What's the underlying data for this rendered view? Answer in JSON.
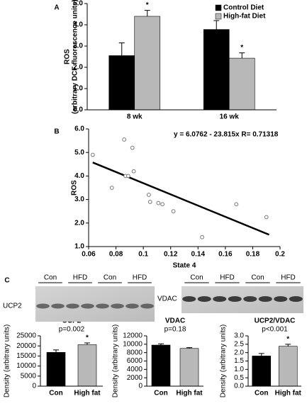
{
  "chart_data": [
    {
      "type": "bar",
      "panel": "A",
      "ylabel": [
        "ROS",
        "(arbitrary DCF fluorescence units)"
      ],
      "categories": [
        "8 wk",
        "16 wk"
      ],
      "series": [
        {
          "name": "Control Diet",
          "color": "#000000",
          "values": [
            2.55,
            3.78
          ],
          "errors": [
            0.6,
            0.42
          ],
          "significance": [
            null,
            null
          ]
        },
        {
          "name": "High-fat Diet",
          "color": "#b8b8b8",
          "values": [
            4.4,
            2.43
          ],
          "errors": [
            0.28,
            0.25
          ],
          "significance": [
            "*",
            "*"
          ]
        }
      ],
      "ylim": [
        0,
        5
      ],
      "yticks": [
        {
          "value": 0,
          "label": "0.0"
        },
        {
          "value": 1,
          "label": "1.0"
        },
        {
          "value": 2,
          "label": "2.0"
        },
        {
          "value": 3,
          "label": "3.0"
        },
        {
          "value": 4,
          "label": "4.0"
        },
        {
          "value": 5,
          "label": "5.0"
        }
      ],
      "legend": "upper right"
    },
    {
      "type": "scatter",
      "panel": "B",
      "xlabel": "State 4",
      "ylabel": "ROS",
      "annotation": "y = 6.0762 - 23.815x  R= 0.71318",
      "x": [
        0.063,
        0.077,
        0.086,
        0.087,
        0.089,
        0.092,
        0.093,
        0.104,
        0.105,
        0.111,
        0.114,
        0.122,
        0.143,
        0.168,
        0.19
      ],
      "y": [
        4.9,
        3.5,
        5.55,
        4.0,
        4.0,
        5.2,
        4.2,
        3.2,
        2.9,
        2.85,
        2.8,
        2.5,
        1.4,
        2.8,
        2.25
      ],
      "color": "#777777",
      "fit": {
        "intercept": 6.0762,
        "slope": -23.815,
        "x": [
          0.063,
          0.192
        ]
      },
      "xlim": [
        0.06,
        0.2
      ],
      "xticks": [
        0.06,
        0.08,
        0.1,
        0.12,
        0.14,
        0.16,
        0.18,
        0.2
      ],
      "ylim": [
        1,
        6
      ],
      "yticks": [
        {
          "value": 1,
          "label": "1.0"
        },
        {
          "value": 2,
          "label": "2.0"
        },
        {
          "value": 3,
          "label": "3.0"
        },
        {
          "value": 4,
          "label": "4.0"
        },
        {
          "value": 5,
          "label": "5.0"
        },
        {
          "value": 6,
          "label": "6.0"
        }
      ]
    },
    {
      "type": "bar",
      "title": "UCP2",
      "subtitle": "p=0.002",
      "ylabel": [
        "Density (arbitrary units)"
      ],
      "categories": [
        "Con",
        "High fat"
      ],
      "series": [
        {
          "colors": [
            "#000000",
            "#b8b8b8"
          ],
          "values": [
            16800,
            20600
          ],
          "errors": [
            1200,
            900
          ],
          "significance": [
            null,
            "*"
          ]
        }
      ],
      "ylim": [
        0,
        25000
      ],
      "yticks": [
        0,
        5000,
        10000,
        15000,
        20000,
        25000
      ]
    },
    {
      "type": "bar",
      "title": "VDAC",
      "subtitle": "p=0.18",
      "ylabel": [
        "Density (arbitrary units)"
      ],
      "categories": [
        "Con",
        "High fat"
      ],
      "series": [
        {
          "colors": [
            "#000000",
            "#b8b8b8"
          ],
          "values": [
            9800,
            9000
          ],
          "errors": [
            300,
            200
          ],
          "significance": [
            null,
            null
          ]
        }
      ],
      "ylim": [
        0,
        12000
      ],
      "yticks": [
        0,
        2000,
        4000,
        6000,
        8000,
        10000,
        12000
      ]
    },
    {
      "type": "bar",
      "title": "UCP2/VDAC",
      "subtitle": "p<0.001",
      "ylabel": [
        "Density (arbitrary units)"
      ],
      "categories": [
        "Con",
        "High fat"
      ],
      "series": [
        {
          "colors": [
            "#000000",
            "#b8b8b8"
          ],
          "values": [
            1.8,
            2.38
          ],
          "errors": [
            0.15,
            0.12
          ],
          "significance": [
            null,
            "*"
          ]
        }
      ],
      "ylim": [
        0,
        3
      ],
      "yticks": [
        {
          "value": 0,
          "label": "0.0"
        },
        {
          "value": 0.5,
          "label": "0.5"
        },
        {
          "value": 1,
          "label": "1.0"
        },
        {
          "value": 1.5,
          "label": "1.5"
        },
        {
          "value": 2,
          "label": "2.0"
        },
        {
          "value": 2.5,
          "label": "2.5"
        },
        {
          "value": 3,
          "label": "3.0"
        }
      ]
    }
  ],
  "blots": {
    "panel": "C",
    "items": [
      {
        "label": "UCP2",
        "lanes": [
          "Con",
          "HFD",
          "Con",
          "HFD"
        ]
      },
      {
        "label": "VDAC",
        "lanes": [
          "Con",
          "HFD",
          "Con",
          "HFD"
        ]
      }
    ]
  }
}
